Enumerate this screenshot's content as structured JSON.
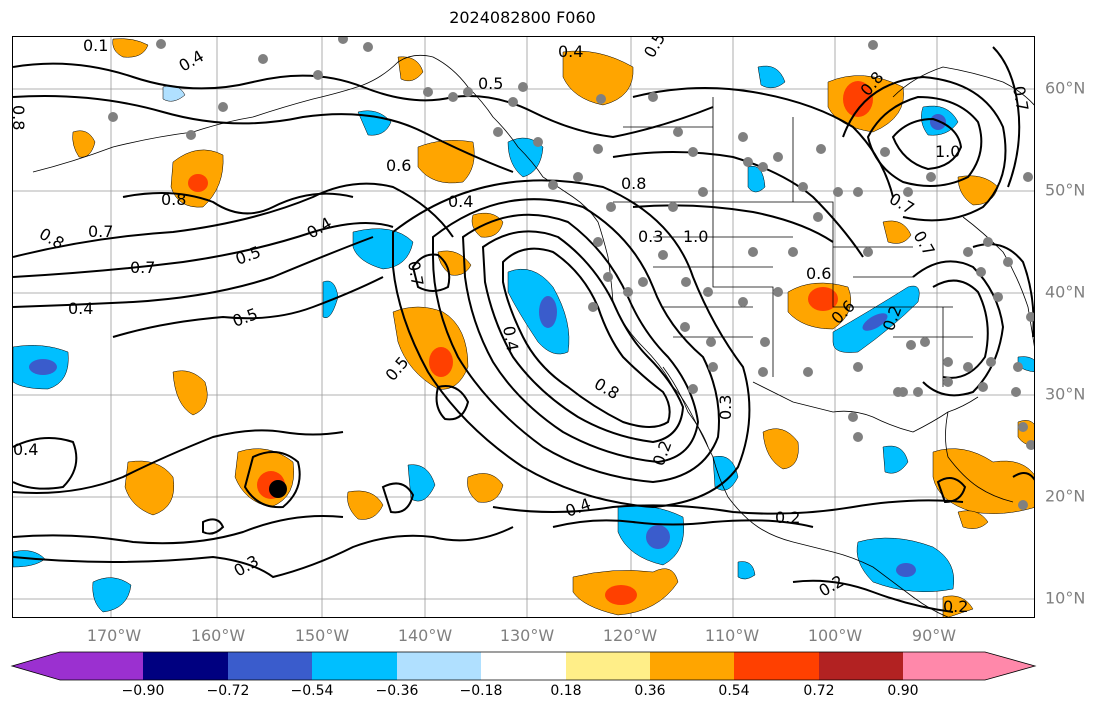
{
  "title": "2024082800 F060",
  "lat_labels": [
    "60°N",
    "50°N",
    "40°N",
    "30°N",
    "20°N",
    "10°N"
  ],
  "lon_labels": [
    "170°W",
    "160°W",
    "150°W",
    "140°W",
    "130°W",
    "120°W",
    "110°W",
    "100°W",
    "90°W"
  ],
  "colorbar": {
    "ticks": [
      "−0.90",
      "−0.72",
      "−0.54",
      "−0.36",
      "−0.18",
      "0.18",
      "0.36",
      "0.54",
      "0.72",
      "0.90"
    ],
    "colors": [
      "#9b30d0",
      "#000080",
      "#3a5ccc",
      "#00bfff",
      "#b0e0ff",
      "#ffffff",
      "#ffee88",
      "#ffa500",
      "#ff4000",
      "#b22222",
      "#ff88aa"
    ]
  },
  "contour_labels": [
    "0.1",
    "0.4",
    "0.5",
    "0.4",
    "0.5",
    "0.8",
    "0.6",
    "0.8",
    "0.7",
    "0.4",
    "0.8",
    "0.8",
    "0.4",
    "0.5",
    "0.7",
    "0.7",
    "0.5",
    "0.4",
    "0.5",
    "0.4",
    "0.8",
    "1.0",
    "0.6",
    "0.3",
    "0.8",
    "0.7",
    "0.6",
    "0.2",
    "0.3",
    "0.4",
    "0.2",
    "0.4",
    "0.2",
    "0.3",
    "0.4",
    "0.2",
    "0.2",
    "1.0",
    "0.7",
    "0.7"
  ]
}
